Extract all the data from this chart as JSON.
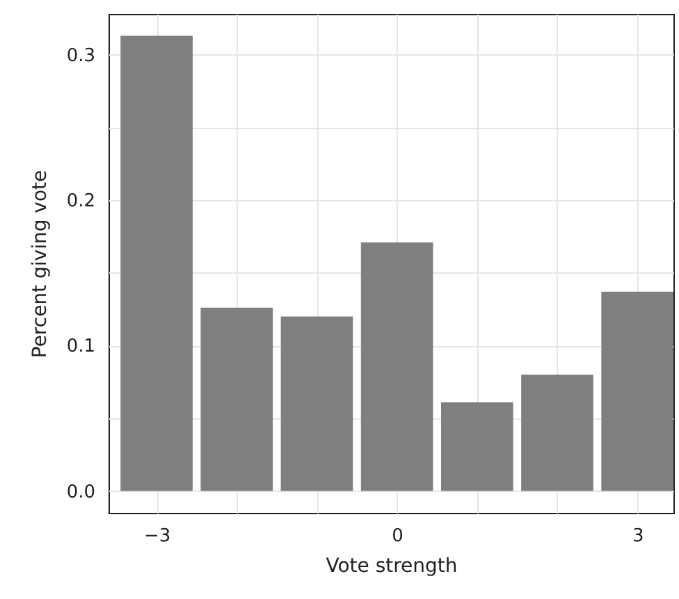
{
  "chart_data": {
    "type": "bar",
    "xlabel": "Vote strength",
    "ylabel": "Percent giving vote",
    "x": [
      -3,
      -2,
      -1,
      0,
      1,
      2,
      3
    ],
    "values": [
      0.313,
      0.126,
      0.12,
      0.171,
      0.061,
      0.08,
      0.137
    ],
    "color": "#7f7f7f",
    "xlim": [
      -3.6,
      3.45
    ],
    "xticks": [
      {
        "value": -3,
        "label": "−3"
      },
      {
        "value": -2,
        "label": null
      },
      {
        "value": -1,
        "label": null
      },
      0,
      {
        "value": 1,
        "label": null
      },
      {
        "value": 2,
        "label": null
      },
      3
    ],
    "ylim": [
      -0.015,
      0.328
    ],
    "yticks": [
      {
        "value": 0,
        "label": "0.0"
      },
      {
        "value": 0.05,
        "label": null
      },
      0.1,
      {
        "value": 0.15,
        "label": null
      },
      0.2,
      {
        "value": 0.25,
        "label": null
      },
      0.3
    ],
    "grid": true
  }
}
